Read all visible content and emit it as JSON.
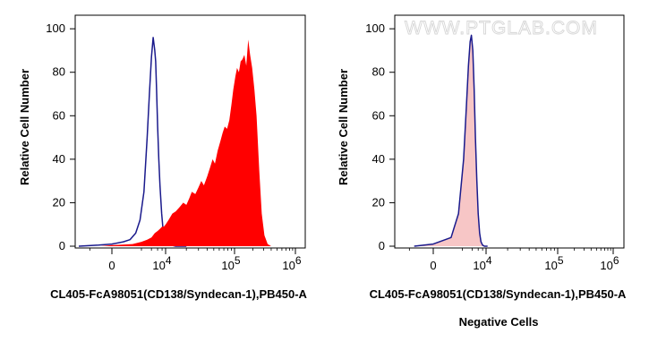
{
  "watermark": "WWW.PTGLAB.COM",
  "chart_data": [
    {
      "type": "area",
      "panel": "left",
      "title": "",
      "xlabel": "CL405-FcA98051(CD138/Syndecan-1),PB450-A",
      "ylabel": "Relative Cell Number",
      "ylim": [
        0,
        105
      ],
      "yticks": [
        0,
        20,
        40,
        60,
        80,
        100
      ],
      "xscale": "biexponential",
      "xticks": [
        {
          "value": 0,
          "label": "0",
          "exp": ""
        },
        {
          "value": 10000,
          "label": "10",
          "exp": "4"
        },
        {
          "value": 100000,
          "label": "10",
          "exp": "5"
        },
        {
          "value": 1000000,
          "label": "10",
          "exp": "6"
        }
      ],
      "grid": false,
      "series": [
        {
          "style": "line",
          "color": "#1a1a8c",
          "x": [
            -1500,
            -600,
            0,
            400,
            800,
            1300,
            1800,
            2400,
            3000,
            3500,
            4000,
            4500,
            5000,
            5300,
            5600,
            6000,
            6500,
            7000,
            7800,
            8600,
            9500,
            10500,
            12000,
            14000,
            17000,
            20000
          ],
          "values": [
            0,
            0.5,
            1,
            2,
            3,
            6,
            12,
            25,
            50,
            70,
            87,
            96,
            90,
            85,
            72,
            55,
            40,
            28,
            15,
            7,
            3,
            1.5,
            0.5,
            0,
            0,
            0
          ]
        },
        {
          "style": "filled",
          "color": "#ff0000",
          "x": [
            -1500,
            -500,
            0,
            1000,
            2000,
            3000,
            4000,
            5000,
            6000,
            7000,
            8000,
            9000,
            10000,
            11000,
            12500,
            14000,
            16000,
            18000,
            20000,
            22000,
            24000,
            27000,
            30000,
            33000,
            36000,
            40000,
            44000,
            48000,
            52000,
            57000,
            62000,
            67000,
            72000,
            78000,
            84000,
            90000,
            96000,
            103000,
            110000,
            118000,
            126000,
            135000,
            145000,
            156000,
            168000,
            180000,
            195000,
            212000,
            230000,
            255000,
            280000,
            310000,
            350000,
            400000
          ],
          "values": [
            0,
            0,
            0.5,
            1,
            2,
            3,
            4,
            6,
            7,
            8,
            9,
            9,
            10,
            12,
            15,
            16,
            18,
            20,
            19,
            22,
            25,
            24,
            27,
            30,
            28,
            32,
            36,
            40,
            38,
            44,
            48,
            52,
            55,
            54,
            58,
            65,
            72,
            78,
            82,
            80,
            85,
            86,
            88,
            83,
            95,
            88,
            82,
            72,
            60,
            35,
            15,
            5,
            1,
            0
          ]
        }
      ]
    },
    {
      "type": "area",
      "panel": "right",
      "title": "Negative Cells",
      "xlabel": "CL405-FcA98051(CD138/Syndecan-1),PB450-A",
      "ylabel": "Relative Cell Number",
      "ylim": [
        0,
        105
      ],
      "yticks": [
        0,
        20,
        40,
        60,
        80,
        100
      ],
      "xscale": "biexponential",
      "xticks": [
        {
          "value": 0,
          "label": "0",
          "exp": ""
        },
        {
          "value": 10000,
          "label": "10",
          "exp": "4"
        },
        {
          "value": 100000,
          "label": "10",
          "exp": "5"
        },
        {
          "value": 1000000,
          "label": "10",
          "exp": "6"
        }
      ],
      "grid": false,
      "series": [
        {
          "style": "filled",
          "color": "#f7c6c6",
          "x": [
            -800,
            0,
            800,
            1500,
            2200,
            2700,
            3100,
            3500,
            3800,
            4200,
            4600,
            5000,
            5500,
            6000,
            6600,
            7200,
            8000,
            9000,
            10500
          ],
          "values": [
            0,
            1,
            4,
            14,
            38,
            62,
            80,
            92,
            95,
            88,
            70,
            48,
            28,
            14,
            6,
            2,
            0.5,
            0,
            0
          ]
        },
        {
          "style": "line",
          "color": "#1a1a8c",
          "x": [
            -800,
            0,
            800,
            1500,
            2200,
            2700,
            3100,
            3500,
            3800,
            4200,
            4600,
            5000,
            5500,
            6000,
            6600,
            7200,
            8000,
            9000,
            10500
          ],
          "values": [
            0,
            1,
            4,
            15,
            40,
            65,
            83,
            94,
            97,
            90,
            72,
            50,
            30,
            15,
            6,
            2,
            0.5,
            0,
            0
          ]
        }
      ]
    }
  ]
}
